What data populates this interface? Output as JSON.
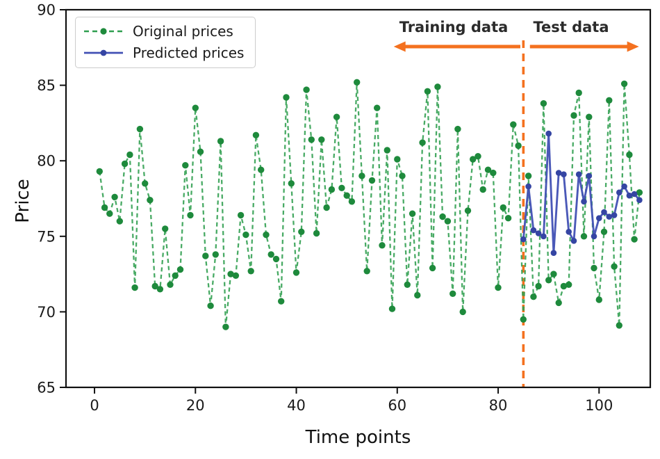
{
  "figure": {
    "background": "#ffffff"
  },
  "legend": {
    "items": [
      {
        "label": "Original prices"
      },
      {
        "label": "Predicted prices"
      }
    ]
  },
  "annotations": {
    "training_label": "Training data",
    "test_label": "Test data"
  },
  "colors": {
    "original_line": "#2f9e4f",
    "original_marker": "#1e8a3c",
    "predicted_line": "#4150b4",
    "predicted_marker": "#3545a3",
    "divider_orange": "#f4711f",
    "axis_text": "#1a1a1a"
  },
  "chart_data": {
    "type": "line",
    "title": "",
    "xlabel": "Time points",
    "ylabel": "Price",
    "xlim": [
      -5.65,
      110.15
    ],
    "ylim": [
      65,
      90
    ],
    "xticks": [
      0,
      20,
      40,
      60,
      80,
      100
    ],
    "yticks": [
      65,
      70,
      75,
      80,
      85,
      90
    ],
    "grid": false,
    "legend_position": "upper left",
    "split_annotation": {
      "x": 85,
      "training_label": "Training data",
      "test_label": "Test data",
      "training_arrow_span": [
        59.3,
        84.4
      ],
      "test_arrow_span": [
        86.3,
        107.9
      ]
    },
    "series": [
      {
        "name": "Original prices",
        "style": "dashed",
        "color": "#2f9e4f",
        "marker_color": "#1e8a3c",
        "x_start": 1,
        "x_step": 1,
        "values": [
          79.3,
          76.9,
          76.5,
          77.6,
          76.0,
          79.8,
          80.4,
          71.6,
          82.1,
          78.5,
          77.4,
          71.7,
          71.5,
          75.5,
          71.8,
          72.4,
          72.8,
          79.7,
          76.4,
          83.5,
          80.6,
          73.7,
          70.4,
          73.8,
          81.3,
          69.0,
          72.5,
          72.4,
          76.4,
          75.1,
          72.7,
          81.7,
          79.4,
          75.1,
          73.8,
          73.5,
          70.7,
          84.2,
          78.5,
          72.6,
          75.3,
          84.7,
          81.4,
          75.2,
          81.4,
          76.9,
          78.1,
          82.9,
          78.2,
          77.7,
          77.3,
          85.2,
          79.0,
          72.7,
          78.7,
          83.5,
          74.4,
          80.7,
          70.2,
          80.1,
          79.0,
          71.8,
          76.5,
          71.1,
          81.2,
          84.6,
          72.9,
          84.9,
          76.3,
          76.0,
          71.2,
          82.1,
          70.0,
          76.7,
          80.1,
          80.3,
          78.1,
          79.4,
          79.2,
          71.6,
          76.9,
          76.2,
          82.4,
          81.0,
          69.5,
          79.0,
          71.0,
          71.7,
          83.8,
          72.1,
          72.5,
          70.6,
          71.7,
          71.8,
          83.0,
          84.5,
          75.0,
          82.9,
          72.9,
          70.8,
          75.3,
          84.0,
          73.0,
          69.1,
          85.1,
          80.4,
          74.8,
          77.9
        ]
      },
      {
        "name": "Predicted prices",
        "style": "solid",
        "color": "#4150b4",
        "marker_color": "#3545a3",
        "x_start": 85,
        "x_step": 1,
        "values": [
          74.8,
          78.3,
          75.4,
          75.2,
          75.0,
          81.8,
          73.9,
          79.2,
          79.1,
          75.3,
          74.7,
          79.1,
          77.3,
          79.0,
          75.0,
          76.2,
          76.6,
          76.3,
          76.4,
          77.9,
          78.3,
          77.7,
          77.8,
          77.4
        ]
      }
    ]
  }
}
